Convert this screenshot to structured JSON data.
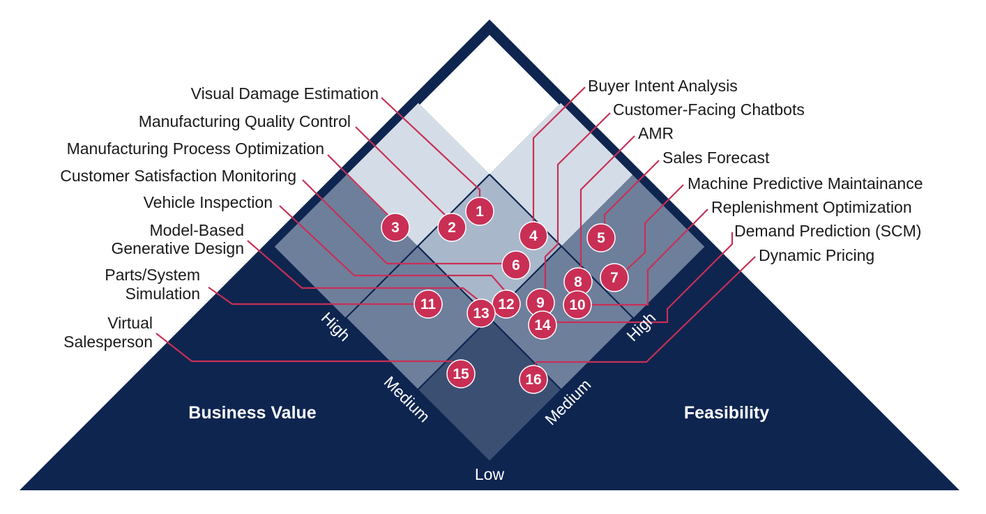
{
  "colors": {
    "navy": "#0e2550",
    "cell_light": "#d4dde7",
    "cell_mid_light": "#a9b7cb",
    "cell_mid": "#6e7f9c",
    "cell_dark": "#3b4f73",
    "cell_white": "#ffffff",
    "badge": "#c92f55",
    "leader": "#c92f55",
    "text": "#1a1a1a"
  },
  "axes": {
    "business_value": {
      "title": "Business Value",
      "high": "High",
      "medium": "Medium"
    },
    "feasibility": {
      "title": "Feasibility",
      "high": "High",
      "medium": "Medium"
    },
    "bottom": "Low"
  },
  "left_labels": [
    {
      "id": 1,
      "lines": [
        "Visual Damage Estimation"
      ]
    },
    {
      "id": 2,
      "lines": [
        "Manufacturing Quality Control"
      ]
    },
    {
      "id": 3,
      "lines": [
        "Manufacturing Process Optimization"
      ]
    },
    {
      "id": 6,
      "lines": [
        "Customer Satisfaction Monitoring"
      ]
    },
    {
      "id": 12,
      "lines": [
        "Vehicle Inspection"
      ]
    },
    {
      "id": 13,
      "lines": [
        "Model-Based",
        "Generative Design"
      ]
    },
    {
      "id": 11,
      "lines": [
        "Parts/System",
        "Simulation"
      ]
    },
    {
      "id": 15,
      "lines": [
        "Virtual",
        "Salesperson"
      ]
    }
  ],
  "right_labels": [
    {
      "id": 4,
      "lines": [
        "Buyer Intent Analysis"
      ]
    },
    {
      "id": 9,
      "lines": [
        "Customer-Facing Chatbots"
      ]
    },
    {
      "id": 8,
      "lines": [
        "AMR"
      ]
    },
    {
      "id": 5,
      "lines": [
        "Sales Forecast"
      ]
    },
    {
      "id": 7,
      "lines": [
        "Machine Predictive Maintainance"
      ]
    },
    {
      "id": 10,
      "lines": [
        "Replenishment Optimization"
      ]
    },
    {
      "id": 14,
      "lines": [
        "Demand Prediction (SCM)"
      ]
    },
    {
      "id": 16,
      "lines": [
        "Dynamic Pricing"
      ]
    }
  ],
  "badges": [
    "1",
    "2",
    "3",
    "4",
    "5",
    "6",
    "7",
    "8",
    "9",
    "10",
    "11",
    "12",
    "13",
    "14",
    "15",
    "16"
  ]
}
